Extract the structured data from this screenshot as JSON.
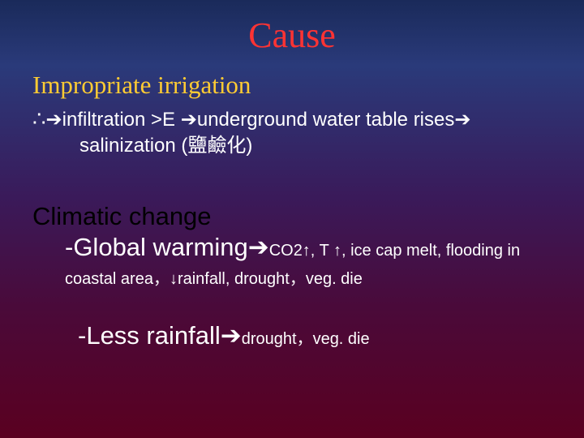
{
  "colors": {
    "title": "#ff3333",
    "subtitle": "#ffcc33",
    "body": "#ffffff",
    "heading2": "#000000"
  },
  "title": "Cause",
  "irrigation": {
    "heading": "Impropriate irrigation",
    "therefore": "∴",
    "line1a": "infiltration >E ",
    "line1b": "underground water table rises",
    "line2": "salinization (鹽鹼化)"
  },
  "climatic": {
    "heading": "Climatic change",
    "global_prefix": "-Global warming",
    "global_small": "CO2↑, T ↑, ice cap melt, flooding in",
    "coastal": "coastal area，↓rainfall, drought，veg. die",
    "less_prefix": "-Less rainfall",
    "less_small": "drought，veg. die"
  },
  "arrow": "➔"
}
